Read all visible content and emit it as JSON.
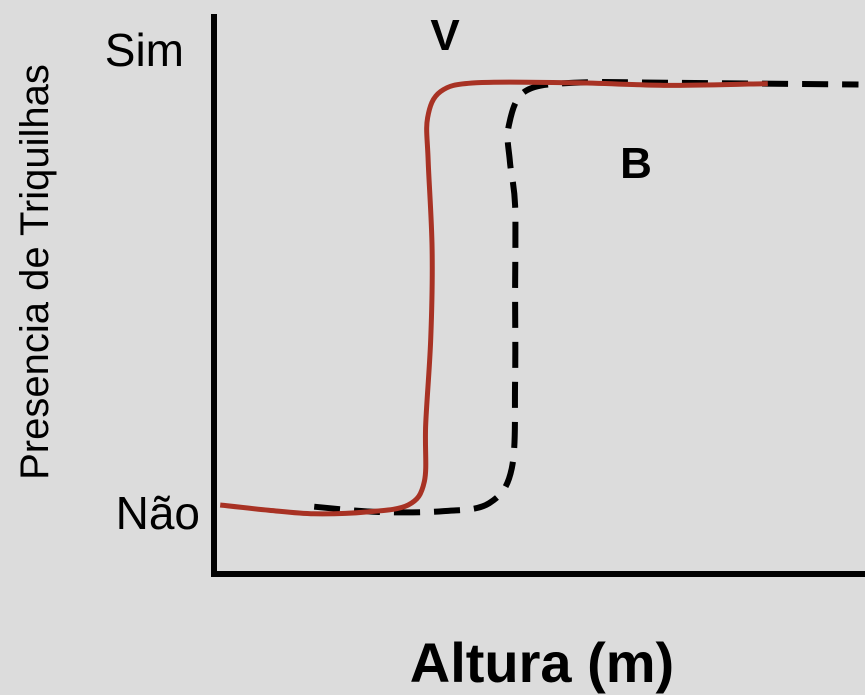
{
  "chart_data": {
    "type": "line",
    "title": "",
    "xlabel": "Altura (m)",
    "ylabel": "Presencia de Triquilhas",
    "y_ticks": [
      "Não",
      "Sim"
    ],
    "ylim": [
      0,
      1
    ],
    "xlim": [
      0,
      10
    ],
    "grid": false,
    "legend": "none",
    "series": [
      {
        "name": "V",
        "color": "#a83224",
        "style": "solid",
        "points": [
          [
            0.05,
            0.016
          ],
          [
            0.8,
            0.004
          ],
          [
            1.5,
            -0.004
          ],
          [
            2.3,
            0.0
          ],
          [
            2.95,
            0.016
          ],
          [
            3.2,
            0.07
          ],
          [
            3.22,
            0.2
          ],
          [
            3.3,
            0.4
          ],
          [
            3.32,
            0.6
          ],
          [
            3.26,
            0.8
          ],
          [
            3.25,
            0.9
          ],
          [
            3.45,
            0.96
          ],
          [
            4.0,
            0.98
          ],
          [
            5.5,
            0.98
          ],
          [
            7.0,
            0.974
          ],
          [
            8.5,
            0.978
          ]
        ]
      },
      {
        "name": "B",
        "color": "#000000",
        "style": "dashed",
        "points": [
          [
            1.5,
            0.012
          ],
          [
            2.5,
            0.0
          ],
          [
            3.5,
            0.002
          ],
          [
            4.2,
            0.02
          ],
          [
            4.55,
            0.1
          ],
          [
            4.6,
            0.3
          ],
          [
            4.6,
            0.5
          ],
          [
            4.6,
            0.7
          ],
          [
            4.52,
            0.8
          ],
          [
            4.5,
            0.88
          ],
          [
            4.75,
            0.96
          ],
          [
            5.5,
            0.98
          ],
          [
            7.0,
            0.98
          ],
          [
            9.9,
            0.976
          ]
        ]
      }
    ]
  }
}
